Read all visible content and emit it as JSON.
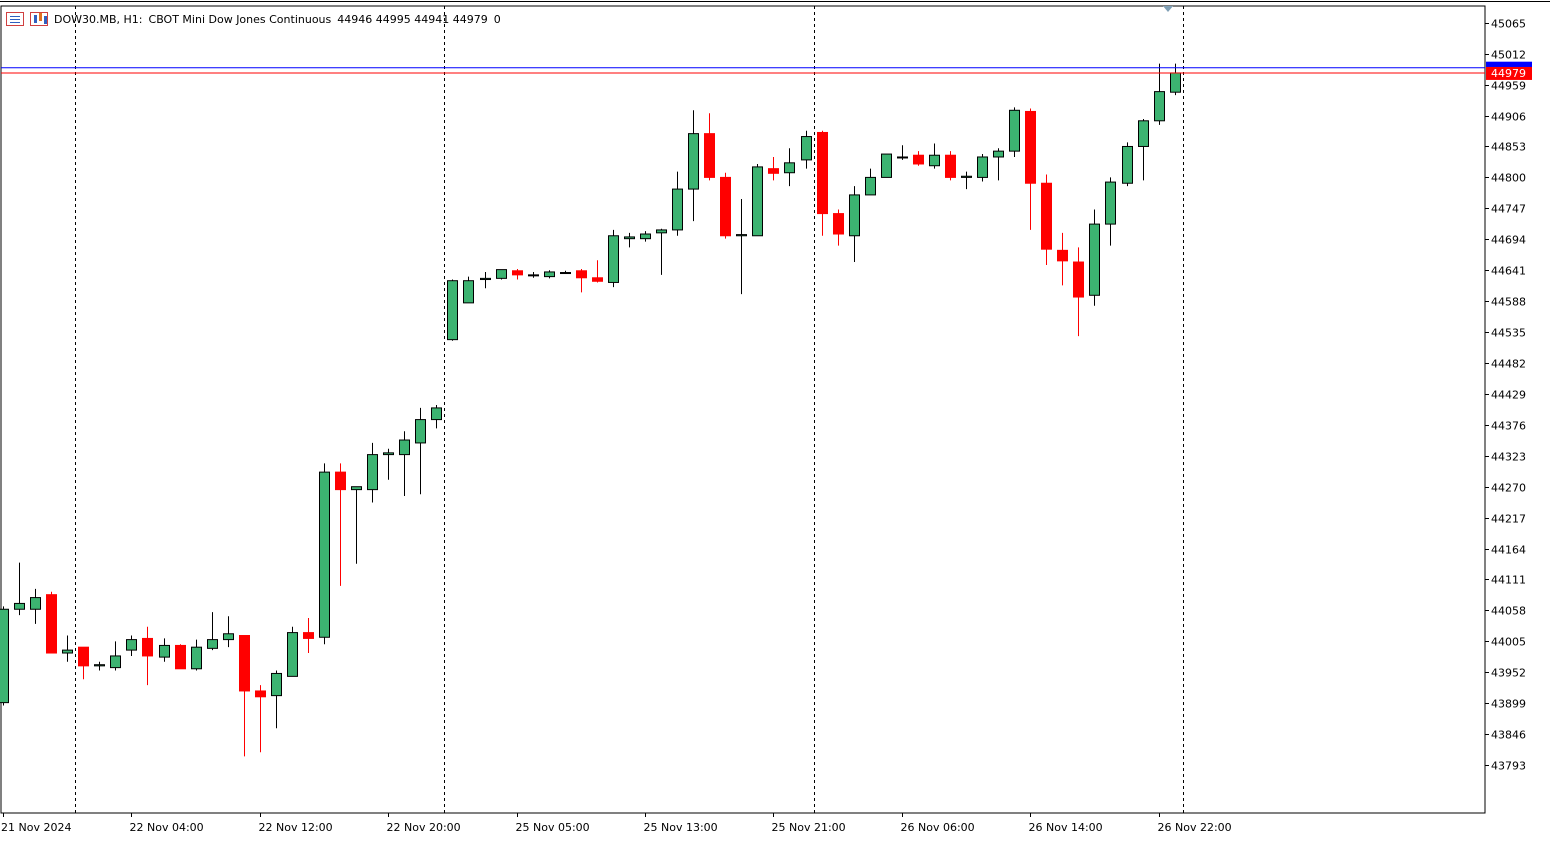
{
  "header": {
    "symbol": "DOW30.MB, H1:",
    "description": "CBOT Mini Dow Jones Continuous",
    "ohlc": "44946 44995 44941 44979",
    "volume": "0",
    "icons": [
      "chart-list-icon",
      "chart-bars-icon"
    ]
  },
  "colors": {
    "bull": "#3cb371",
    "bear": "#ff0000",
    "outline": "#000000",
    "bid_line": "#ff0000",
    "ask_line": "#0000ff",
    "price_label_bg": "#ff0000"
  },
  "chart_data": {
    "type": "candlestick",
    "symbol": "DOW30.MB",
    "timeframe": "H1",
    "ylim": [
      43740,
      45080
    ],
    "y_ticks": [
      45065,
      45012,
      44959,
      44906,
      44853,
      44800,
      44747,
      44694,
      44641,
      44588,
      44535,
      44482,
      44429,
      44376,
      44323,
      44270,
      44217,
      44164,
      44111,
      44058,
      44005,
      43952,
      43899,
      43846,
      43793
    ],
    "x_ticks": [
      {
        "label": "21 Nov 2024",
        "index": 0
      },
      {
        "label": "22 Nov 04:00",
        "index": 8
      },
      {
        "label": "22 Nov 12:00",
        "index": 16
      },
      {
        "label": "22 Nov 20:00",
        "index": 24
      },
      {
        "label": "25 Nov 05:00",
        "index": 32
      },
      {
        "label": "25 Nov 13:00",
        "index": 40
      },
      {
        "label": "25 Nov 21:00",
        "index": 48
      },
      {
        "label": "26 Nov 06:00",
        "index": 56
      },
      {
        "label": "26 Nov 14:00",
        "index": 64
      },
      {
        "label": "26 Nov 22:00",
        "index": 72
      }
    ],
    "period_separators": [
      5,
      28,
      51,
      74
    ],
    "current_price": "44979",
    "current_price_value": 44979,
    "ask_price_value": 44988,
    "candles": [
      [
        43900,
        44065,
        43895,
        44060
      ],
      [
        44060,
        44140,
        44050,
        44070
      ],
      [
        44060,
        44095,
        44035,
        44080
      ],
      [
        44085,
        44090,
        43985,
        43985
      ],
      [
        43985,
        44015,
        43970,
        43990
      ],
      [
        43995,
        43995,
        43940,
        43963
      ],
      [
        43963,
        43970,
        43955,
        43965
      ],
      [
        43960,
        44005,
        43955,
        43980
      ],
      [
        43990,
        44015,
        43980,
        44008
      ],
      [
        44010,
        44030,
        43930,
        43980
      ],
      [
        43978,
        44010,
        43970,
        43998
      ],
      [
        43998,
        44000,
        43958,
        43958
      ],
      [
        43958,
        44008,
        43955,
        43995
      ],
      [
        43993,
        44055,
        43990,
        44008
      ],
      [
        44008,
        44048,
        43995,
        44018
      ],
      [
        44015,
        44015,
        43808,
        43920
      ],
      [
        43920,
        43930,
        43815,
        43910
      ],
      [
        43912,
        43955,
        43856,
        43950
      ],
      [
        43945,
        44030,
        43945,
        44020
      ],
      [
        44020,
        44045,
        43985,
        44010
      ],
      [
        44012,
        44310,
        44000,
        44295
      ],
      [
        44295,
        44310,
        44100,
        44265
      ],
      [
        44265,
        44270,
        44138,
        44270
      ],
      [
        44265,
        44345,
        44243,
        44325
      ],
      [
        44325,
        44335,
        44282,
        44328
      ],
      [
        44325,
        44365,
        44254,
        44350
      ],
      [
        44345,
        44405,
        44257,
        44385
      ],
      [
        44385,
        44410,
        44370,
        44405
      ],
      [
        44522,
        44625,
        44520,
        44623
      ],
      [
        44585,
        44630,
        44585,
        44623
      ],
      [
        44625,
        44638,
        44610,
        44627
      ],
      [
        44627,
        44642,
        44625,
        44642
      ],
      [
        44640,
        44643,
        44625,
        44633
      ],
      [
        44633,
        44638,
        44628,
        44633
      ],
      [
        44630,
        44641,
        44627,
        44638
      ],
      [
        44637,
        44640,
        44635,
        44637
      ],
      [
        44640,
        44643,
        44603,
        44628
      ],
      [
        44628,
        44658,
        44620,
        44622
      ],
      [
        44620,
        44710,
        44612,
        44700
      ],
      [
        44695,
        44705,
        44680,
        44698
      ],
      [
        44695,
        44708,
        44690,
        44703
      ],
      [
        44705,
        44712,
        44633,
        44710
      ],
      [
        44710,
        44810,
        44700,
        44780
      ],
      [
        44780,
        44915,
        44725,
        44875
      ],
      [
        44875,
        44910,
        44795,
        44800
      ],
      [
        44800,
        44808,
        44695,
        44700
      ],
      [
        44700,
        44763,
        44600,
        44702
      ],
      [
        44700,
        44823,
        44700,
        44818
      ],
      [
        44815,
        44835,
        44795,
        44807
      ],
      [
        44808,
        44850,
        44785,
        44825
      ],
      [
        44830,
        44880,
        44815,
        44870
      ],
      [
        44877,
        44880,
        44700,
        44738
      ],
      [
        44738,
        44745,
        44683,
        44703
      ],
      [
        44700,
        44785,
        44655,
        44770
      ],
      [
        44770,
        44815,
        44770,
        44800
      ],
      [
        44800,
        44840,
        44800,
        44840
      ],
      [
        44835,
        44855,
        44830,
        44835
      ],
      [
        44838,
        44845,
        44820,
        44823
      ],
      [
        44820,
        44858,
        44815,
        44838
      ],
      [
        44838,
        44845,
        44795,
        44800
      ],
      [
        44800,
        44810,
        44780,
        44802
      ],
      [
        44800,
        44840,
        44793,
        44835
      ],
      [
        44835,
        44850,
        44795,
        44845
      ],
      [
        44845,
        44920,
        44835,
        44915
      ],
      [
        44913,
        44918,
        44710,
        44790
      ],
      [
        44790,
        44805,
        44650,
        44677
      ],
      [
        44675,
        44705,
        44615,
        44657
      ],
      [
        44655,
        44680,
        44528,
        44595
      ],
      [
        44598,
        44745,
        44580,
        44720
      ],
      [
        44720,
        44800,
        44683,
        44792
      ],
      [
        44790,
        44860,
        44785,
        44853
      ],
      [
        44853,
        44900,
        44795,
        44897
      ],
      [
        44897,
        44995,
        44890,
        44947
      ],
      [
        44946,
        44995,
        44941,
        44979
      ]
    ]
  }
}
